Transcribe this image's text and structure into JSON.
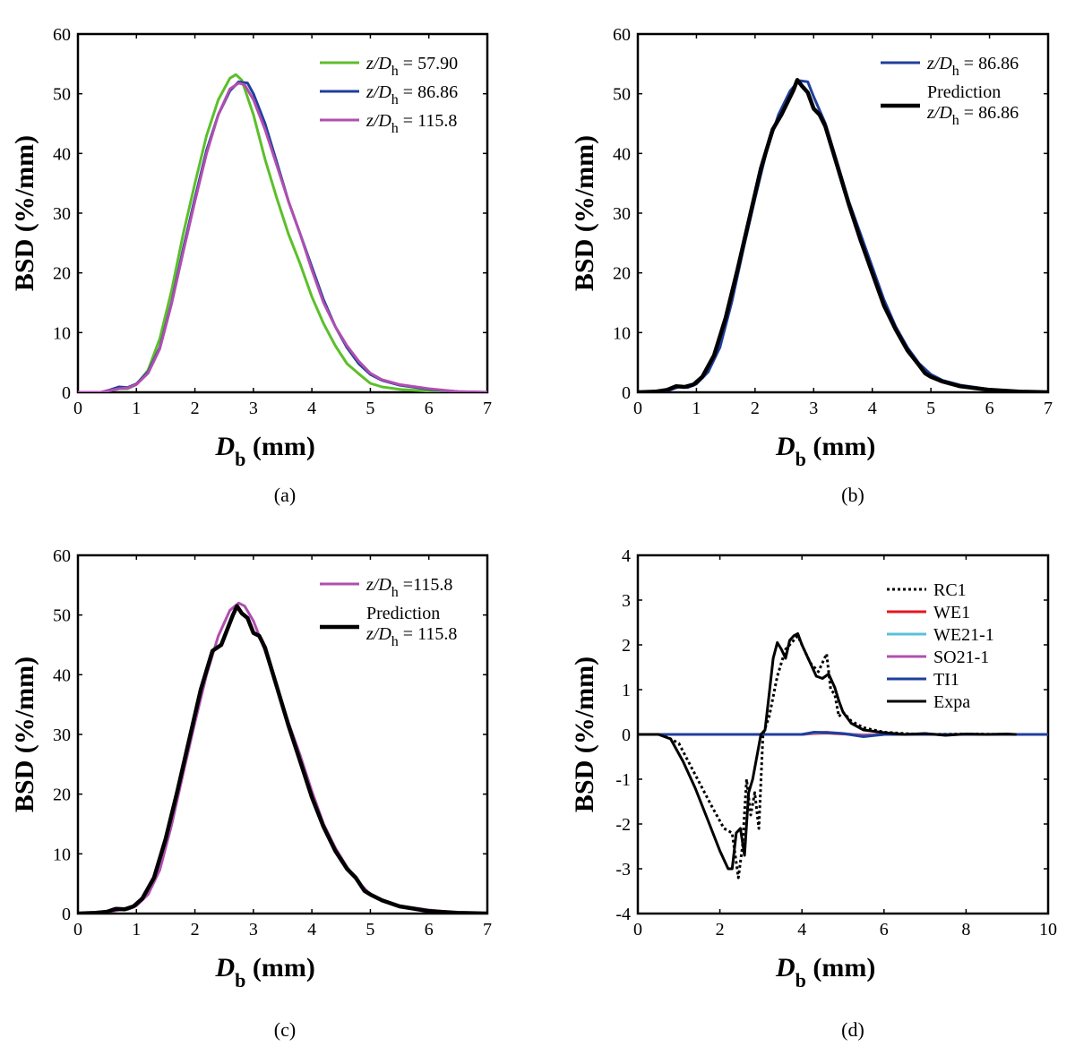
{
  "chart_data": [
    {
      "panel": "a",
      "type": "line",
      "caption": "(a)",
      "xlabel_main": "D",
      "xlabel_sub": "b",
      "xlabel_unit": " (mm)",
      "ylabel": "BSD (%/mm)",
      "xlim": [
        0,
        7
      ],
      "ylim": [
        0,
        60
      ],
      "xticks": [
        0,
        1,
        2,
        3,
        4,
        5,
        6,
        7
      ],
      "yticks": [
        0,
        10,
        20,
        30,
        40,
        50,
        60
      ],
      "legend_position": "top-right",
      "series": [
        {
          "name": "57.90",
          "legend_prefix": "z/D",
          "legend_sub": "h",
          "legend_eq": " = 57.90",
          "color": "#5cbf2a",
          "width": 3,
          "dash": "",
          "x": [
            0,
            0.4,
            0.55,
            0.7,
            0.85,
            1.0,
            1.2,
            1.4,
            1.6,
            1.8,
            2.0,
            2.2,
            2.4,
            2.6,
            2.7,
            2.8,
            3.0,
            3.2,
            3.4,
            3.6,
            3.8,
            4.0,
            4.2,
            4.4,
            4.6,
            4.8,
            5.0,
            5.2,
            5.5,
            6.0,
            6.5,
            7.0
          ],
          "y": [
            0,
            0,
            0.3,
            0.6,
            0.6,
            1.3,
            3.7,
            9,
            17,
            26.5,
            35,
            43,
            49,
            52.6,
            53.2,
            52.3,
            46.5,
            39,
            32.5,
            26.5,
            21.5,
            16,
            11.5,
            7.8,
            4.8,
            3.1,
            1.5,
            0.9,
            0.5,
            0.2,
            0,
            0
          ]
        },
        {
          "name": "86.86",
          "legend_prefix": "z/D",
          "legend_sub": "h",
          "legend_eq": " = 86.86",
          "color": "#1f3f9c",
          "width": 3,
          "dash": "",
          "x": [
            0,
            0.4,
            0.55,
            0.7,
            0.85,
            1.0,
            1.2,
            1.4,
            1.6,
            1.8,
            2.0,
            2.2,
            2.4,
            2.6,
            2.75,
            2.9,
            3.0,
            3.2,
            3.4,
            3.6,
            3.8,
            4.0,
            4.2,
            4.4,
            4.6,
            4.8,
            5.0,
            5.2,
            5.5,
            6.0,
            6.5,
            7.0
          ],
          "y": [
            0,
            0,
            0.4,
            0.9,
            0.8,
            1.4,
            3.4,
            7.5,
            15,
            24,
            32.5,
            40.5,
            46.5,
            50.5,
            52,
            51.8,
            50,
            45,
            38.5,
            32,
            26.5,
            21,
            15.5,
            11,
            7.5,
            4.8,
            3.0,
            2.0,
            1.2,
            0.5,
            0.1,
            0
          ]
        },
        {
          "name": "115.8",
          "legend_prefix": "z/D",
          "legend_sub": "h",
          "legend_eq": " = 115.8",
          "color": "#b04fb0",
          "width": 3,
          "dash": "",
          "x": [
            0,
            0.4,
            0.55,
            0.7,
            0.85,
            1.0,
            1.2,
            1.4,
            1.6,
            1.8,
            2.0,
            2.2,
            2.4,
            2.6,
            2.75,
            2.85,
            3.0,
            3.2,
            3.4,
            3.6,
            3.8,
            4.0,
            4.2,
            4.4,
            4.6,
            4.8,
            5.0,
            5.2,
            5.5,
            6.0,
            6.5,
            7.0
          ],
          "y": [
            0,
            0,
            0.3,
            0.6,
            0.7,
            1.3,
            3.2,
            7.3,
            14.8,
            23.5,
            32,
            40,
            46.5,
            50.8,
            51.8,
            51.5,
            49,
            44,
            38,
            32,
            26.5,
            20.5,
            15,
            11,
            7.8,
            5.2,
            3.2,
            2.1,
            1.3,
            0.6,
            0.1,
            0
          ]
        }
      ]
    },
    {
      "panel": "b",
      "type": "line",
      "caption": "(b)",
      "xlabel_main": "D",
      "xlabel_sub": "b",
      "xlabel_unit": " (mm)",
      "ylabel": "BSD (%/mm)",
      "xlim": [
        0,
        7
      ],
      "ylim": [
        0,
        60
      ],
      "xticks": [
        0,
        1,
        2,
        3,
        4,
        5,
        6,
        7
      ],
      "yticks": [
        0,
        10,
        20,
        30,
        40,
        50,
        60
      ],
      "legend_position": "top-right",
      "series": [
        {
          "name": "86.86",
          "legend_prefix": "z/D",
          "legend_sub": "h",
          "legend_eq": " = 86.86",
          "color": "#1f3f9c",
          "width": 3,
          "dash": "",
          "x": [
            0,
            0.4,
            0.55,
            0.7,
            0.85,
            1.0,
            1.2,
            1.4,
            1.6,
            1.8,
            2.0,
            2.2,
            2.4,
            2.6,
            2.75,
            2.9,
            3.0,
            3.2,
            3.4,
            3.6,
            3.8,
            4.0,
            4.2,
            4.4,
            4.6,
            4.8,
            5.0,
            5.2,
            5.5,
            6.0,
            6.5,
            7.0
          ],
          "y": [
            0,
            0,
            0.4,
            0.9,
            0.8,
            1.4,
            3.4,
            7.5,
            15,
            24,
            32.5,
            40.5,
            46.5,
            50.5,
            52.2,
            52,
            49.5,
            45,
            38.5,
            32,
            26.5,
            21,
            15.5,
            11,
            7.5,
            4.8,
            3.0,
            2.0,
            1.2,
            0.5,
            0.1,
            0
          ]
        },
        {
          "name": "Prediction 86.86",
          "legend_line1": "Prediction",
          "legend_prefix": "z/D",
          "legend_sub": "h",
          "legend_eq": " = 86.86",
          "color": "#000000",
          "width": 4.5,
          "dash": "",
          "x": [
            0,
            0.3,
            0.5,
            0.65,
            0.8,
            0.95,
            1.1,
            1.3,
            1.5,
            1.7,
            1.9,
            2.1,
            2.3,
            2.45,
            2.55,
            2.65,
            2.72,
            2.8,
            2.9,
            3.0,
            3.1,
            3.2,
            3.4,
            3.6,
            3.8,
            4.0,
            4.2,
            4.4,
            4.6,
            4.8,
            4.9,
            5.0,
            5.2,
            5.5,
            6.0,
            6.5,
            7.0
          ],
          "y": [
            0,
            0.1,
            0.4,
            1.0,
            0.9,
            1.3,
            2.6,
            6.2,
            12.5,
            20.5,
            29,
            37.5,
            44,
            46.5,
            48.5,
            50.5,
            52.3,
            51.3,
            50.2,
            47.5,
            46.5,
            44.5,
            38,
            31.5,
            25.5,
            20,
            14.5,
            10.5,
            7,
            4.5,
            3.2,
            2.6,
            1.8,
            1.0,
            0.4,
            0.1,
            0
          ]
        }
      ]
    },
    {
      "panel": "c",
      "type": "line",
      "caption": "(c)",
      "xlabel_main": "D",
      "xlabel_sub": "b",
      "xlabel_unit": " (mm)",
      "ylabel": "BSD (%/mm)",
      "xlim": [
        0,
        7
      ],
      "ylim": [
        0,
        60
      ],
      "xticks": [
        0,
        1,
        2,
        3,
        4,
        5,
        6,
        7
      ],
      "yticks": [
        0,
        10,
        20,
        30,
        40,
        50,
        60
      ],
      "legend_position": "top-right",
      "series": [
        {
          "name": "115.8",
          "legend_prefix": "z/D",
          "legend_sub": "h",
          "legend_eq": " =115.8",
          "color": "#b04fb0",
          "width": 3,
          "dash": "",
          "x": [
            0,
            0.4,
            0.55,
            0.7,
            0.85,
            1.0,
            1.2,
            1.4,
            1.6,
            1.8,
            2.0,
            2.2,
            2.4,
            2.6,
            2.75,
            2.85,
            3.0,
            3.2,
            3.4,
            3.6,
            3.8,
            4.0,
            4.2,
            4.4,
            4.6,
            4.8,
            5.0,
            5.2,
            5.5,
            6.0,
            6.5,
            7.0
          ],
          "y": [
            0,
            0,
            0.3,
            0.6,
            0.7,
            1.3,
            3.2,
            7.3,
            14.8,
            23.5,
            32,
            40,
            46.5,
            50.8,
            52,
            51.5,
            49,
            44,
            38,
            32,
            26.5,
            20.5,
            15,
            11,
            7.8,
            5.2,
            3.2,
            2.1,
            1.3,
            0.6,
            0.1,
            0
          ]
        },
        {
          "name": "Prediction 115.8",
          "legend_line1": "Prediction",
          "legend_prefix": "z/D",
          "legend_sub": "h",
          "legend_eq": " = 115.8",
          "color": "#000000",
          "width": 4.5,
          "dash": "",
          "x": [
            0,
            0.3,
            0.5,
            0.65,
            0.8,
            0.95,
            1.1,
            1.3,
            1.5,
            1.7,
            1.9,
            2.1,
            2.3,
            2.45,
            2.55,
            2.65,
            2.72,
            2.8,
            2.9,
            3.0,
            3.1,
            3.2,
            3.4,
            3.6,
            3.8,
            4.0,
            4.2,
            4.4,
            4.6,
            4.75,
            4.9,
            5.0,
            5.2,
            5.5,
            6.0,
            6.5,
            7.0
          ],
          "y": [
            0,
            0.1,
            0.3,
            0.8,
            0.7,
            1.2,
            2.5,
            6.0,
            12.5,
            20.5,
            29,
            37.5,
            44,
            45,
            47.5,
            50,
            51.5,
            50.3,
            49.5,
            47,
            46.5,
            44.5,
            38,
            31.5,
            25.5,
            19.5,
            14.5,
            10.5,
            7.5,
            6,
            3.8,
            3.2,
            2.2,
            1.2,
            0.4,
            0.1,
            0
          ]
        }
      ]
    },
    {
      "panel": "d",
      "type": "line",
      "caption": "(d)",
      "xlabel_main": "D",
      "xlabel_sub": "b",
      "xlabel_unit": " (mm)",
      "ylabel": "BSD (%/mm)",
      "xlim": [
        0,
        10
      ],
      "ylim": [
        -4,
        4
      ],
      "xticks": [
        0,
        2,
        4,
        6,
        8,
        10
      ],
      "yticks": [
        -4,
        -3,
        -2,
        -1,
        0,
        1,
        2,
        3,
        4
      ],
      "legend_position": "top-right",
      "series": [
        {
          "name": "RC1",
          "color": "#000000",
          "width": 3,
          "dash": "3,3",
          "x": [
            0,
            0.3,
            0.6,
            1.0,
            1.4,
            1.8,
            2.1,
            2.3,
            2.45,
            2.55,
            2.65,
            2.75,
            2.85,
            2.95,
            3.05,
            3.2,
            3.4,
            3.6,
            3.8,
            3.9,
            4.0,
            4.2,
            4.4,
            4.6,
            4.7,
            4.8,
            4.9,
            5.0,
            5.2,
            5.5,
            6.0,
            6.5,
            7.0,
            8.0,
            9.0,
            10.0
          ],
          "y": [
            0,
            0,
            0,
            -0.2,
            -0.9,
            -1.6,
            -2.1,
            -2.2,
            -3.2,
            -2.5,
            -1.0,
            -1.8,
            -1.3,
            -2.1,
            0,
            0.4,
            1.3,
            1.9,
            2.1,
            2.2,
            2.0,
            1.6,
            1.4,
            1.8,
            1.0,
            0.9,
            0.4,
            0.5,
            0.3,
            0.15,
            0.05,
            0.02,
            0,
            0.01,
            0,
            0
          ]
        },
        {
          "name": "WE1",
          "color": "#e8141e",
          "width": 3,
          "dash": "",
          "x": [
            0,
            4.0,
            4.3,
            4.6,
            5.0,
            5.5,
            6.0,
            10.0
          ],
          "y": [
            0,
            0,
            0.02,
            0.03,
            0.01,
            -0.01,
            0,
            0
          ]
        },
        {
          "name": "WE21-1",
          "color": "#5bc0d8",
          "width": 3,
          "dash": "",
          "x": [
            0,
            4.0,
            4.3,
            4.6,
            5.0,
            5.5,
            6.0,
            10.0
          ],
          "y": [
            0,
            0,
            0.03,
            0.04,
            0.02,
            -0.02,
            0,
            0
          ]
        },
        {
          "name": "SO21-1",
          "color": "#b04fb0",
          "width": 3,
          "dash": "",
          "x": [
            0,
            4.0,
            4.3,
            4.6,
            5.0,
            5.5,
            6.0,
            10.0
          ],
          "y": [
            0,
            0,
            0.04,
            0.05,
            0.02,
            -0.03,
            0,
            0
          ]
        },
        {
          "name": "TI1",
          "color": "#1f3f9c",
          "width": 3,
          "dash": "",
          "x": [
            0,
            4.0,
            4.3,
            4.6,
            5.0,
            5.5,
            6.0,
            10.0
          ],
          "y": [
            0,
            0,
            0.05,
            0.04,
            0.02,
            -0.05,
            0,
            0
          ]
        },
        {
          "name": "Expa",
          "color": "#000000",
          "width": 3,
          "dash": "",
          "x": [
            0,
            0.5,
            0.8,
            1.1,
            1.4,
            1.7,
            2.0,
            2.2,
            2.3,
            2.4,
            2.5,
            2.6,
            2.7,
            2.8,
            2.9,
            3.0,
            3.1,
            3.2,
            3.3,
            3.4,
            3.5,
            3.6,
            3.7,
            3.8,
            3.9,
            4.0,
            4.1,
            4.2,
            4.35,
            4.5,
            4.65,
            4.8,
            4.9,
            5.0,
            5.2,
            5.5,
            6.0,
            6.5,
            7.0,
            7.5,
            8.0,
            8.5,
            9.0,
            9.2
          ],
          "y": [
            0,
            0,
            -0.1,
            -0.6,
            -1.2,
            -1.9,
            -2.6,
            -3.0,
            -3.0,
            -2.2,
            -2.1,
            -2.7,
            -1.3,
            -1.0,
            -0.5,
            0,
            0.1,
            0.9,
            1.7,
            2.05,
            1.9,
            1.7,
            2.1,
            2.2,
            2.25,
            2.0,
            1.8,
            1.6,
            1.3,
            1.25,
            1.35,
            1.05,
            0.75,
            0.5,
            0.25,
            0.1,
            0.04,
            0,
            0.02,
            -0.02,
            0.01,
            0,
            0.01,
            0
          ]
        }
      ]
    }
  ]
}
